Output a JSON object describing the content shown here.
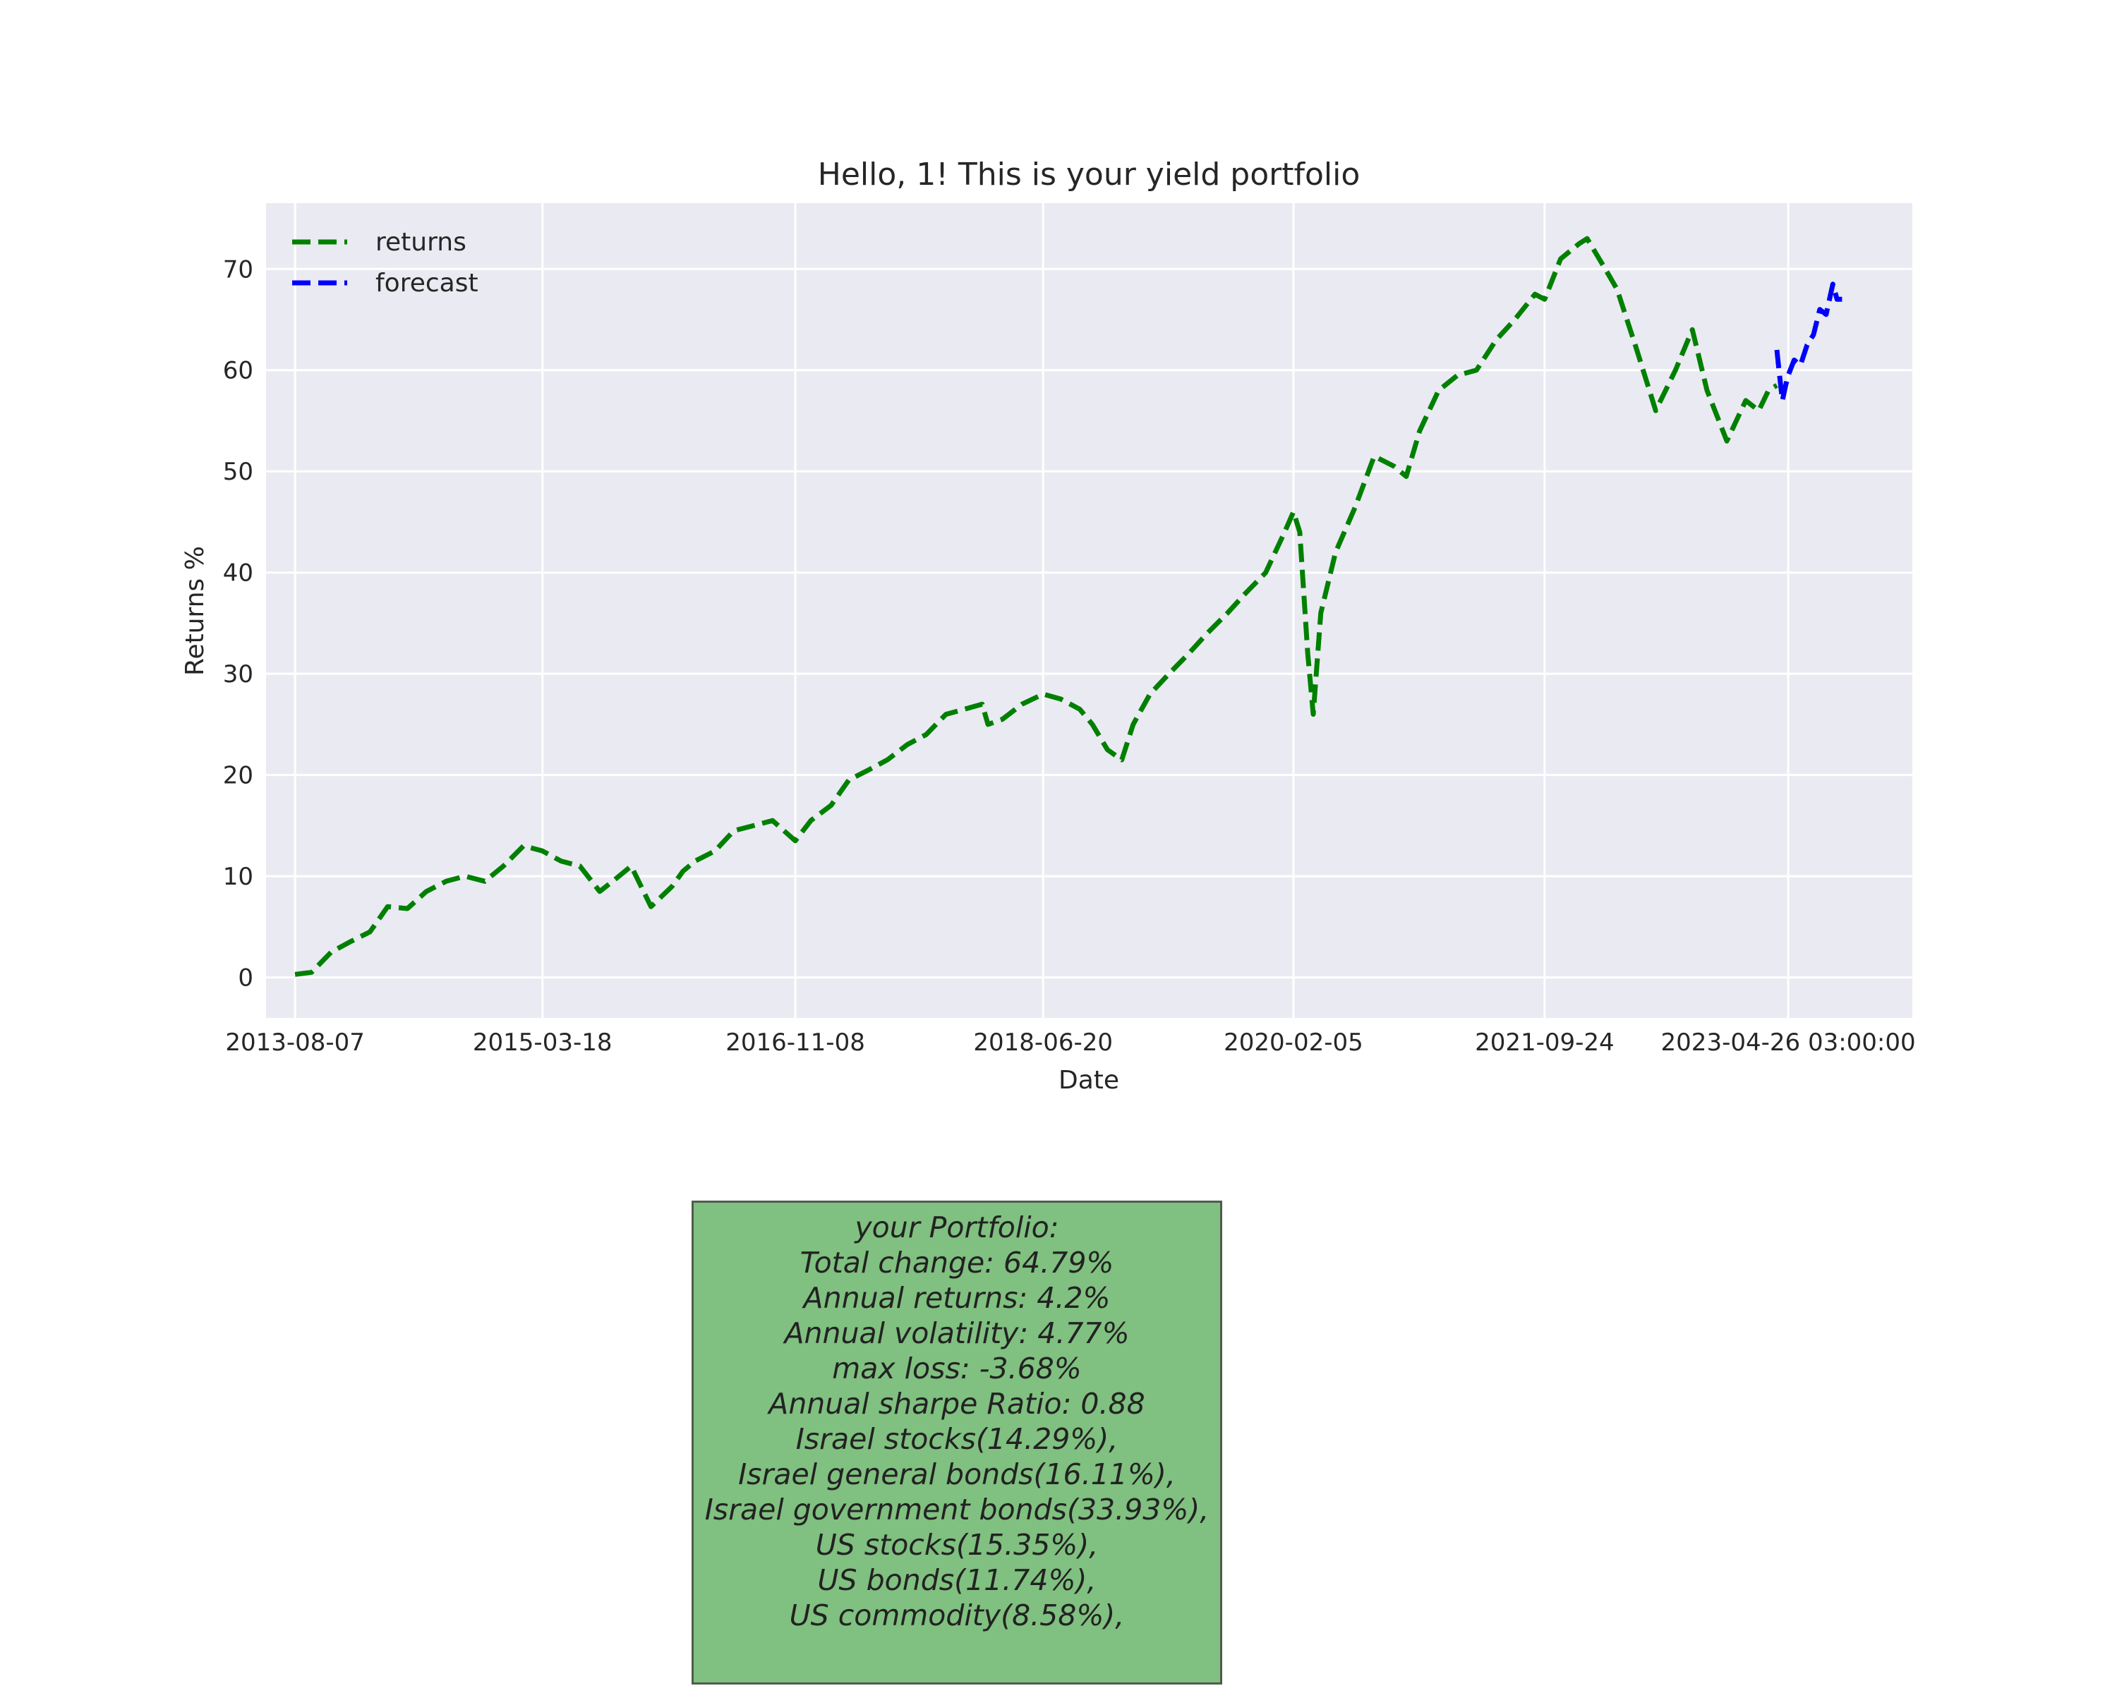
{
  "chart_data": {
    "type": "line",
    "title": "Hello, 1! This is your yield portfolio",
    "xlabel": "Date",
    "ylabel": "Returns %",
    "ylim": [
      -4,
      76.5
    ],
    "yticks": [
      0,
      10,
      20,
      30,
      40,
      50,
      60,
      70
    ],
    "x_domain": [
      "2013-05-30",
      "2024-02-15"
    ],
    "xticks": [
      "2013-08-07",
      "2015-03-18",
      "2016-11-08",
      "2018-06-20",
      "2020-02-05",
      "2021-09-24",
      "2023-04-26 03:00:00"
    ],
    "grid": true,
    "legend_position": "top-left",
    "series": [
      {
        "name": "returns",
        "color": "#008000",
        "style": "dashed",
        "x": [
          "2013-08-07",
          "2013-09-15",
          "2013-11-01",
          "2013-12-15",
          "2014-02-01",
          "2014-03-15",
          "2014-05-01",
          "2014-06-15",
          "2014-08-01",
          "2014-09-15",
          "2014-11-01",
          "2014-12-15",
          "2015-02-01",
          "2015-03-18",
          "2015-05-01",
          "2015-06-15",
          "2015-08-01",
          "2015-09-01",
          "2015-10-15",
          "2015-12-01",
          "2016-01-20",
          "2016-02-15",
          "2016-03-15",
          "2016-05-01",
          "2016-06-15",
          "2016-08-01",
          "2016-09-15",
          "2016-11-08",
          "2016-12-15",
          "2017-02-01",
          "2017-03-15",
          "2017-05-01",
          "2017-06-15",
          "2017-08-01",
          "2017-09-15",
          "2017-11-01",
          "2017-12-15",
          "2018-01-26",
          "2018-02-09",
          "2018-03-15",
          "2018-05-01",
          "2018-06-20",
          "2018-08-01",
          "2018-09-15",
          "2018-10-15",
          "2018-11-20",
          "2018-12-24",
          "2019-01-20",
          "2019-03-01",
          "2019-04-15",
          "2019-06-01",
          "2019-07-15",
          "2019-09-01",
          "2019-10-15",
          "2019-12-01",
          "2020-01-15",
          "2020-02-05",
          "2020-02-20",
          "2020-03-10",
          "2020-03-23",
          "2020-04-10",
          "2020-05-15",
          "2020-07-01",
          "2020-08-15",
          "2020-10-01",
          "2020-10-30",
          "2020-12-01",
          "2021-01-15",
          "2021-03-01",
          "2021-04-15",
          "2021-06-01",
          "2021-07-15",
          "2021-09-01",
          "2021-09-24",
          "2021-11-01",
          "2021-12-15",
          "2022-01-03",
          "2022-02-15",
          "2022-03-15",
          "2022-05-01",
          "2022-06-15",
          "2022-08-01",
          "2022-09-10",
          "2022-10-15",
          "2022-12-01",
          "2023-01-15",
          "2023-02-15",
          "2023-03-10",
          "2023-03-30"
        ],
        "y": [
          0.3,
          0.5,
          2.5,
          3.5,
          4.5,
          7.0,
          6.8,
          8.5,
          9.5,
          10.0,
          9.5,
          11.0,
          13.0,
          12.5,
          11.5,
          11.0,
          8.5,
          9.5,
          11.0,
          7.0,
          9.0,
          10.5,
          11.5,
          12.5,
          14.5,
          15.0,
          15.5,
          13.5,
          15.5,
          17.0,
          19.5,
          20.5,
          21.5,
          23.0,
          24.0,
          26.0,
          26.5,
          27.0,
          25.0,
          25.5,
          27.0,
          28.0,
          27.5,
          26.5,
          25.0,
          22.5,
          21.5,
          25.0,
          28.0,
          30.0,
          32.0,
          34.0,
          36.0,
          38.0,
          40.0,
          44.0,
          46.0,
          44.0,
          32.0,
          26.0,
          36.0,
          42.0,
          46.5,
          51.5,
          50.5,
          49.5,
          54.0,
          58.0,
          59.5,
          60.0,
          63.0,
          65.0,
          67.5,
          67.0,
          71.0,
          72.5,
          73.0,
          70.0,
          68.0,
          62.0,
          56.0,
          60.0,
          64.0,
          58.0,
          53.0,
          57.0,
          56.0,
          58.0,
          58.5
        ]
      },
      {
        "name": "forecast",
        "color": "#0000ff",
        "style": "dashed",
        "x": [
          "2023-03-30",
          "2023-04-04",
          "2023-04-12",
          "2023-04-20",
          "2023-04-26",
          "2023-05-10",
          "2023-05-25",
          "2023-06-10",
          "2023-06-25",
          "2023-07-10",
          "2023-07-25",
          "2023-08-10",
          "2023-08-20",
          "2023-09-01"
        ],
        "y": [
          62.0,
          60.0,
          57.0,
          58.5,
          59.5,
          61.0,
          60.5,
          62.5,
          63.5,
          66.0,
          65.5,
          68.5,
          67.0,
          67.0
        ]
      }
    ]
  },
  "summary_box": {
    "lines": [
      "your Portfolio:",
      "Total change: 64.79%",
      "Annual returns: 4.2%",
      "Annual volatility: 4.77%",
      "max loss: -3.68%",
      "Annual sharpe Ratio: 0.88",
      "Israel stocks(14.29%),",
      "Israel general bonds(16.11%),",
      "Israel government bonds(33.93%),",
      "US stocks(15.35%),",
      "US bonds(11.74%),",
      "US commodity(8.58%),"
    ],
    "background_color": "#80c080"
  }
}
